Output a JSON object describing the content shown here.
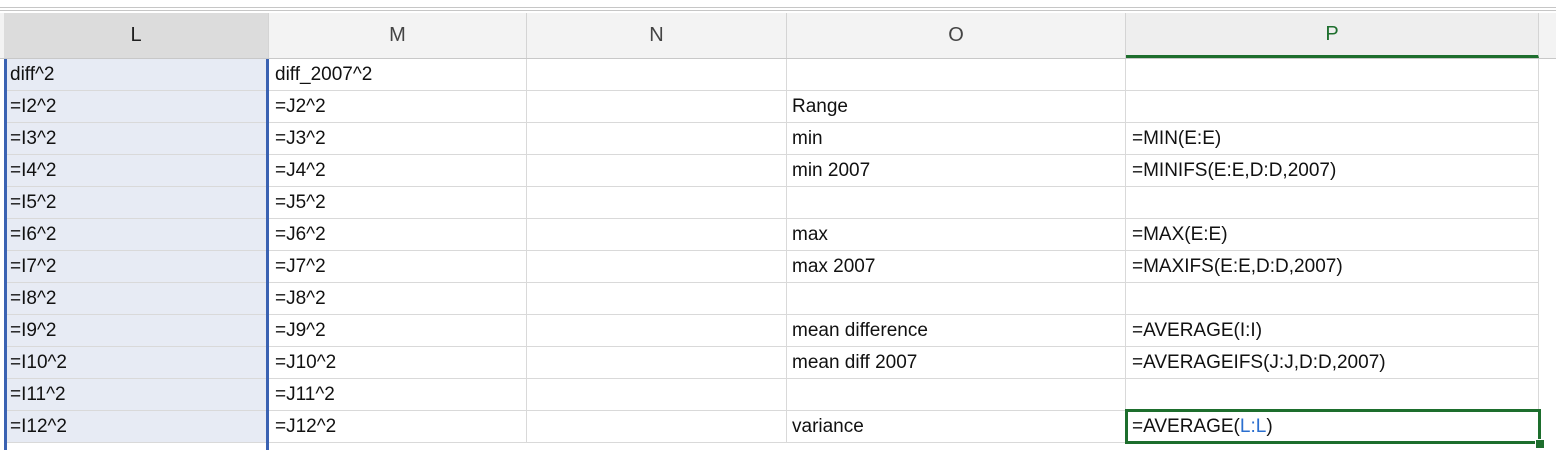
{
  "columns": [
    "L",
    "M",
    "N",
    "O",
    "P"
  ],
  "active_column": "P",
  "selected_column": "L",
  "rows": [
    {
      "L": "diff^2",
      "M": "diff_2007^2",
      "N": "",
      "O": "",
      "P": ""
    },
    {
      "L": "=I2^2",
      "M": "=J2^2",
      "N": "",
      "O": "Range",
      "P": ""
    },
    {
      "L": "=I3^2",
      "M": "=J3^2",
      "N": "",
      "O": "min",
      "P": "=MIN(E:E)"
    },
    {
      "L": "=I4^2",
      "M": "=J4^2",
      "N": "",
      "O": "min 2007",
      "P": "=MINIFS(E:E,D:D,2007)"
    },
    {
      "L": "=I5^2",
      "M": "=J5^2",
      "N": "",
      "O": "",
      "P": ""
    },
    {
      "L": "=I6^2",
      "M": "=J6^2",
      "N": "",
      "O": "max",
      "P": "=MAX(E:E)"
    },
    {
      "L": "=I7^2",
      "M": "=J7^2",
      "N": "",
      "O": "max 2007",
      "P": "=MAXIFS(E:E,D:D,2007)"
    },
    {
      "L": "=I8^2",
      "M": "=J8^2",
      "N": "",
      "O": "",
      "P": ""
    },
    {
      "L": "=I9^2",
      "M": "=J9^2",
      "N": "",
      "O": "mean difference",
      "P": "=AVERAGE(I:I)"
    },
    {
      "L": "=I10^2",
      "M": "=J10^2",
      "N": "",
      "O": "mean diff 2007",
      "P": "=AVERAGEIFS(J:J,D:D,2007)"
    },
    {
      "L": "=I11^2",
      "M": "=J11^2",
      "N": "",
      "O": "",
      "P": ""
    },
    {
      "L": "=I12^2",
      "M": "=J12^2",
      "N": "",
      "O": "variance",
      "P": "=AVERAGE(L:L)"
    }
  ],
  "active_cell_formula": {
    "prefix": "=AVERAGE(",
    "reference": "L:L",
    "suffix": ")"
  },
  "colors": {
    "accent": "#1d6e2d",
    "selection": "#3a62b2",
    "reference": "#2b6fcf",
    "selected_fill": "#e7ebf4"
  }
}
